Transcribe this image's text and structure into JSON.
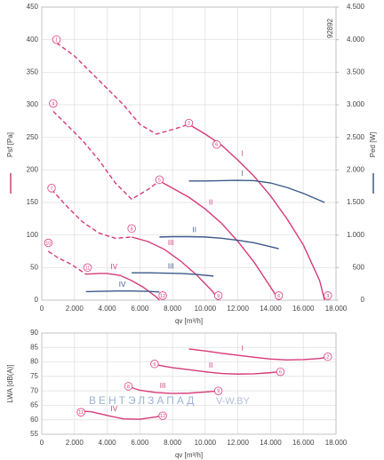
{
  "chart_data": [
    {
      "type": "line",
      "code": "92892",
      "xlabel": "qv [m³/h]",
      "ylabel": "Psf [Pa]",
      "y2label": "Ped [W]",
      "grid": true,
      "xlim": [
        0,
        18000
      ],
      "xticks": [
        0,
        {
          "value": 2000,
          "label": "2.000"
        },
        {
          "value": 4000,
          "label": "4.000"
        },
        {
          "value": 6000,
          "label": "6.000"
        },
        {
          "value": 8000,
          "label": "8.000"
        },
        {
          "value": 10000,
          "label": "10.000"
        },
        {
          "value": 12000,
          "label": "12.000"
        },
        {
          "value": 14000,
          "label": "14.000"
        },
        {
          "value": 16000,
          "label": "16.000"
        },
        {
          "value": 18000,
          "label": "18.000"
        }
      ],
      "ylim": [
        0,
        450
      ],
      "yticks": [
        0,
        50,
        100,
        150,
        200,
        250,
        300,
        350,
        400,
        450
      ],
      "y2lim": [
        0,
        4500
      ],
      "y2ticks": [
        0,
        500,
        {
          "value": 1000,
          "label": "1.000"
        },
        {
          "value": 1500,
          "label": "1.500"
        },
        {
          "value": 2000,
          "label": "2.000"
        },
        {
          "value": 2500,
          "label": "2.500"
        },
        {
          "value": 3000,
          "label": "3.000"
        },
        {
          "value": 3500,
          "label": "3.500"
        },
        {
          "value": 4000,
          "label": "4.000"
        },
        {
          "value": 4500,
          "label": "4.500"
        }
      ],
      "series": [
        {
          "color": "#d63a7a",
          "style": "dashed",
          "x": [
            900,
            2000,
            3000,
            4000,
            5000,
            6000,
            7000,
            8000,
            9000
          ],
          "values": [
            395,
            375,
            350,
            325,
            300,
            270,
            255,
            262,
            270
          ]
        },
        {
          "name": "I",
          "color": "#d63a7a",
          "style": "solid",
          "x": [
            9000,
            10000,
            11000,
            12000,
            13000,
            14000,
            15000,
            16000,
            17000,
            17300
          ],
          "values": [
            270,
            255,
            238,
            215,
            190,
            160,
            125,
            85,
            30,
            0
          ]
        },
        {
          "color": "#d63a7a",
          "style": "dashed",
          "x": [
            700,
            1500,
            2500,
            3500,
            4500,
            5500,
            6500,
            7200
          ],
          "values": [
            290,
            270,
            245,
            215,
            180,
            155,
            170,
            183
          ]
        },
        {
          "name": "II",
          "color": "#d63a7a",
          "style": "solid",
          "x": [
            7200,
            8000,
            9000,
            10000,
            11000,
            12000,
            13000,
            14000,
            14500
          ],
          "values": [
            183,
            172,
            158,
            140,
            118,
            90,
            58,
            20,
            0
          ]
        },
        {
          "color": "#d63a7a",
          "style": "dashed",
          "x": [
            600,
            1500,
            2500,
            3500,
            4500,
            5500
          ],
          "values": [
            170,
            145,
            120,
            103,
            95,
            97
          ]
        },
        {
          "name": "III",
          "color": "#d63a7a",
          "style": "solid",
          "x": [
            5500,
            6500,
            7500,
            8500,
            9500,
            10500,
            10800
          ],
          "values": [
            97,
            90,
            78,
            60,
            38,
            12,
            0
          ]
        },
        {
          "color": "#d63a7a",
          "style": "dashed",
          "x": [
            400,
            1000,
            1800,
            2700
          ],
          "values": [
            75,
            65,
            55,
            40
          ]
        },
        {
          "name": "IV",
          "color": "#d63a7a",
          "style": "solid",
          "x": [
            2700,
            3500,
            4000,
            4800,
            5500,
            6200,
            7000,
            7200
          ],
          "values": [
            40,
            41,
            41,
            38,
            30,
            20,
            5,
            0
          ]
        },
        {
          "name": "I",
          "color": "#3b5a8a",
          "style": "solid",
          "axis": "y2",
          "x": [
            9000,
            10000,
            12000,
            13000,
            14000,
            15000,
            16000,
            17300
          ],
          "values": [
            1830,
            1830,
            1840,
            1835,
            1800,
            1730,
            1640,
            1500
          ]
        },
        {
          "name": "II",
          "color": "#3b5a8a",
          "style": "solid",
          "axis": "y2",
          "x": [
            7200,
            8000,
            9000,
            10000,
            11000,
            12000,
            13000,
            14500
          ],
          "values": [
            970,
            975,
            975,
            970,
            950,
            920,
            880,
            790
          ]
        },
        {
          "name": "III",
          "color": "#3b5a8a",
          "style": "solid",
          "axis": "y2",
          "x": [
            5500,
            6500,
            7500,
            8500,
            9500,
            10500
          ],
          "values": [
            420,
            420,
            415,
            410,
            395,
            370
          ]
        },
        {
          "name": "IV",
          "color": "#3b5a8a",
          "style": "solid",
          "axis": "y2",
          "x": [
            2700,
            3500,
            4500,
            5500,
            6500,
            7200
          ],
          "values": [
            130,
            135,
            140,
            140,
            135,
            125
          ]
        }
      ],
      "annotations": [
        {
          "text": "1",
          "x": 900,
          "y": 400
        },
        {
          "text": "2",
          "x": 9000,
          "y": 272
        },
        {
          "text": "3",
          "x": 17500,
          "y": 7
        },
        {
          "text": "4",
          "x": 700,
          "y": 302
        },
        {
          "text": "5",
          "x": 7200,
          "y": 185
        },
        {
          "text": "6",
          "x": 14500,
          "y": 7
        },
        {
          "text": "7",
          "x": 600,
          "y": 172
        },
        {
          "text": "8",
          "x": 5500,
          "y": 110
        },
        {
          "text": "9",
          "x": 10800,
          "y": 7
        },
        {
          "text": "10",
          "x": 400,
          "y": 88
        },
        {
          "text": "11",
          "x": 2800,
          "y": 50
        },
        {
          "text": "12",
          "x": 7400,
          "y": 7
        },
        {
          "text": "6",
          "x": 10700,
          "y": 239
        }
      ]
    },
    {
      "type": "line",
      "xlabel": "qv [m³/h]",
      "ylabel": "LWA [dB(A)]",
      "grid": true,
      "watermark": [
        "ВЕНТЭЛЗАПАД",
        "V-W.BY"
      ],
      "xlim": [
        0,
        18000
      ],
      "xticks": [
        0,
        {
          "value": 2000,
          "label": "2.000"
        },
        {
          "value": 4000,
          "label": "4.000"
        },
        {
          "value": 6000,
          "label": "6.000"
        },
        {
          "value": 8000,
          "label": "8.000"
        },
        {
          "value": 10000,
          "label": "10.000"
        },
        {
          "value": 12000,
          "label": "12.000"
        },
        {
          "value": 14000,
          "label": "14.000"
        },
        {
          "value": 16000,
          "label": "16.000"
        },
        {
          "value": 18000,
          "label": "18.000"
        }
      ],
      "ylim": [
        55,
        90
      ],
      "yticks": [
        55,
        60,
        65,
        70,
        75,
        80,
        85,
        90
      ],
      "series": [
        {
          "name": "I",
          "color": "#d63a7a",
          "style": "solid",
          "x": [
            9000,
            10000,
            11000,
            12000,
            13000,
            14000,
            15000,
            16000,
            17000,
            17500
          ],
          "values": [
            84.5,
            83.8,
            83,
            82.3,
            81.6,
            81,
            80.7,
            80.8,
            81.2,
            81.7
          ]
        },
        {
          "name": "II",
          "color": "#d63a7a",
          "style": "solid",
          "x": [
            7000,
            8000,
            9000,
            10000,
            11000,
            12000,
            13000,
            14000,
            14500
          ],
          "values": [
            79,
            78,
            77.3,
            76.6,
            76,
            75.8,
            75.9,
            76.3,
            76.6
          ]
        },
        {
          "name": "III",
          "color": "#d63a7a",
          "style": "solid",
          "x": [
            5300,
            6000,
            7000,
            8000,
            9000,
            10000,
            10800
          ],
          "values": [
            71.5,
            70.2,
            69.4,
            69.1,
            69.2,
            69.6,
            70
          ]
        },
        {
          "name": "IV",
          "color": "#d63a7a",
          "style": "solid",
          "x": [
            2300,
            3000,
            4000,
            5000,
            6000,
            7000,
            7200
          ],
          "values": [
            63,
            62.8,
            61.5,
            60.3,
            60.2,
            61,
            61.3
          ]
        }
      ],
      "annotations": [
        {
          "text": "2",
          "x": 17500,
          "y": 81.8
        },
        {
          "text": "5",
          "x": 6900,
          "y": 79.3
        },
        {
          "text": "6",
          "x": 14600,
          "y": 76.6
        },
        {
          "text": "8",
          "x": 5300,
          "y": 71.6
        },
        {
          "text": "9",
          "x": 10800,
          "y": 70
        },
        {
          "text": "11",
          "x": 2400,
          "y": 62.6
        },
        {
          "text": "12",
          "x": 7400,
          "y": 61.4
        }
      ]
    }
  ]
}
